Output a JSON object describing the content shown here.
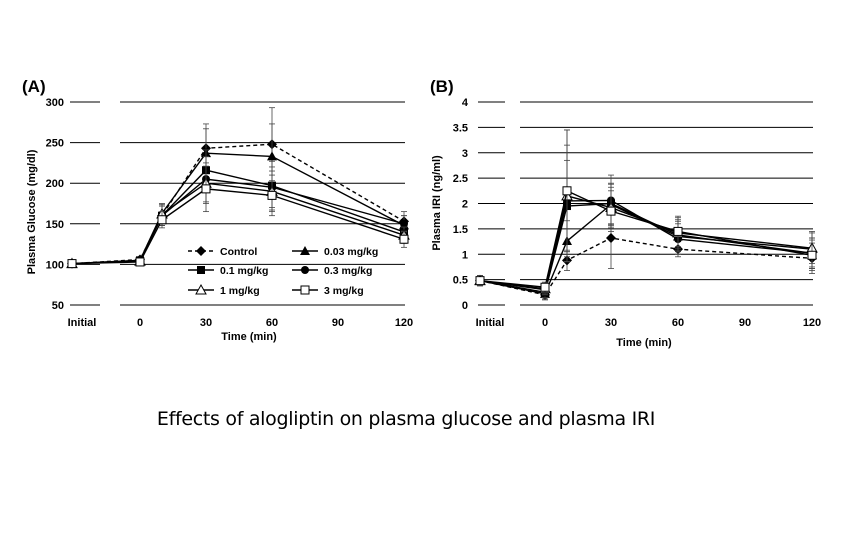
{
  "caption": "Effects of alogliptin on plasma glucose and plasma IRI",
  "legend": [
    {
      "label": "Control",
      "marker": "diamond",
      "dashed": true
    },
    {
      "label": "0.03 mg/kg",
      "marker": "triangle-filled",
      "dashed": false
    },
    {
      "label": "0.1 mg/kg",
      "marker": "square-filled",
      "dashed": false
    },
    {
      "label": "0.3 mg/kg",
      "marker": "circle-filled",
      "dashed": false
    },
    {
      "label": "1 mg/kg",
      "marker": "triangle-open",
      "dashed": false
    },
    {
      "label": "3 mg/kg",
      "marker": "square-open",
      "dashed": false
    }
  ],
  "chart_data": [
    {
      "type": "line",
      "panel_label": "(A)",
      "xlabel": "Time (min)",
      "ylabel": "Plasma Glucose  (mg/dl)",
      "x_tick_labels": [
        "Initial",
        "0",
        "30",
        "60",
        "90",
        "120"
      ],
      "x_tick_values": [
        "Initial",
        0,
        30,
        60,
        90,
        120
      ],
      "ylim": [
        50,
        300
      ],
      "y_ticks": [
        50,
        100,
        150,
        200,
        250,
        300
      ],
      "grid": "horizontal",
      "legend_position": "inside-bottom-center",
      "x": [
        "Initial",
        0,
        10,
        30,
        60,
        120
      ],
      "series": [
        {
          "name": "Control",
          "values": [
            101,
            106,
            160,
            243,
            248,
            153
          ],
          "error": [
            3,
            3,
            12,
            30,
            45,
            12
          ]
        },
        {
          "name": "0.03 mg/kg",
          "values": [
            101,
            105,
            163,
            237,
            233,
            148
          ],
          "error": [
            3,
            3,
            12,
            30,
            40,
            12
          ]
        },
        {
          "name": "0.1 mg/kg",
          "values": [
            101,
            105,
            160,
            216,
            197,
            140
          ],
          "error": [
            3,
            3,
            12,
            25,
            30,
            10
          ]
        },
        {
          "name": "0.3 mg/kg",
          "values": [
            101,
            104,
            160,
            205,
            195,
            150
          ],
          "error": [
            3,
            3,
            12,
            28,
            25,
            10
          ]
        },
        {
          "name": "1 mg/kg",
          "values": [
            101,
            104,
            162,
            200,
            190,
            136
          ],
          "error": [
            3,
            3,
            12,
            25,
            25,
            10
          ]
        },
        {
          "name": "3 mg/kg",
          "values": [
            101,
            103,
            155,
            193,
            185,
            131
          ],
          "error": [
            3,
            3,
            10,
            28,
            25,
            10
          ]
        }
      ]
    },
    {
      "type": "line",
      "panel_label": "(B)",
      "xlabel": "Time (min)",
      "ylabel": "Plasma IRI (ng/ml)",
      "x_tick_labels": [
        "Initial",
        "0",
        "30",
        "60",
        "90",
        "120"
      ],
      "x_tick_values": [
        "Initial",
        0,
        30,
        60,
        90,
        120
      ],
      "ylim": [
        0,
        4
      ],
      "y_ticks": [
        0,
        0.5,
        1,
        1.5,
        2,
        2.5,
        3,
        3.5,
        4
      ],
      "y_tick_labels": [
        "0",
        "0.5",
        "1",
        "1.5",
        "2",
        "2.5",
        "3",
        "3.5",
        "4"
      ],
      "grid": "horizontal",
      "x": [
        "Initial",
        0,
        10,
        30,
        60,
        120
      ],
      "series": [
        {
          "name": "Control",
          "values": [
            0.48,
            0.2,
            0.88,
            1.32,
            1.1,
            0.92
          ],
          "error": [
            0.1,
            0.1,
            0.2,
            0.6,
            0.15,
            0.3
          ]
        },
        {
          "name": "0.03 mg/kg",
          "values": [
            0.48,
            0.22,
            1.26,
            1.98,
            1.35,
            1.1
          ],
          "error": [
            0.1,
            0.1,
            0.4,
            0.4,
            0.3,
            0.35
          ]
        },
        {
          "name": "0.1 mg/kg",
          "values": [
            0.48,
            0.25,
            1.95,
            2.0,
            1.38,
            1.02
          ],
          "error": [
            0.1,
            0.1,
            0.9,
            0.4,
            0.3,
            0.3
          ]
        },
        {
          "name": "0.3 mg/kg",
          "values": [
            0.48,
            0.3,
            2.05,
            2.06,
            1.3,
            1.02
          ],
          "error": [
            0.1,
            0.1,
            1.1,
            0.5,
            0.3,
            0.3
          ]
        },
        {
          "name": "1 mg/kg",
          "values": [
            0.48,
            0.32,
            2.15,
            1.92,
            1.42,
            1.12
          ],
          "error": [
            0.1,
            0.1,
            1.3,
            0.4,
            0.3,
            0.3
          ]
        },
        {
          "name": "3 mg/kg",
          "values": [
            0.48,
            0.35,
            2.25,
            1.85,
            1.45,
            0.98
          ],
          "error": [
            0.1,
            0.1,
            1.2,
            0.4,
            0.3,
            0.3
          ]
        }
      ]
    }
  ]
}
